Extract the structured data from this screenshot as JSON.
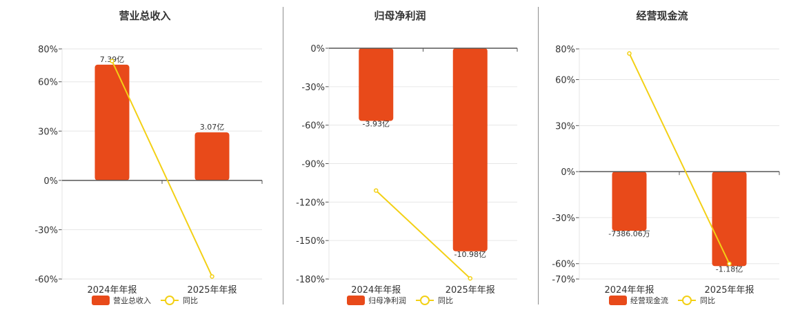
{
  "colors": {
    "bar": "#e84a1a",
    "line": "#f3d015",
    "grid": "#e6e6e6",
    "axis": "#555555",
    "text": "#333333"
  },
  "chart_data": [
    {
      "type": "bar",
      "title": "营业总收入",
      "categories": [
        "2024年年报",
        "2025年年报"
      ],
      "series": [
        {
          "name": "营业总收入",
          "type": "bar",
          "values": [
            7.39,
            3.07
          ],
          "labels": [
            "7.39亿",
            "3.07亿"
          ]
        },
        {
          "name": "同比",
          "type": "line",
          "values": [
            72.6,
            -58.46
          ]
        }
      ],
      "yticks": [
        "80%",
        "60%",
        "30%",
        "0%",
        "-30%",
        "-60%"
      ],
      "ylim": [
        -60,
        80
      ],
      "legend": "bottom"
    },
    {
      "type": "bar",
      "title": "归母净利润",
      "categories": [
        "2024年年报",
        "2025年年报"
      ],
      "series": [
        {
          "name": "归母净利润",
          "type": "bar",
          "values": [
            -3.93,
            -10.98
          ],
          "labels": [
            "-3.93亿",
            "-10.98亿"
          ]
        },
        {
          "name": "同比",
          "type": "line",
          "values": [
            -111,
            -179.5
          ]
        }
      ],
      "yticks": [
        "0%",
        "-30%",
        "-60%",
        "-90%",
        "-120%",
        "-150%",
        "-180%"
      ],
      "ylim": [
        -180,
        0
      ],
      "legend": "bottom"
    },
    {
      "type": "bar",
      "title": "经营现金流",
      "categories": [
        "2024年年报",
        "2025年年报"
      ],
      "series": [
        {
          "name": "经营现金流",
          "type": "bar",
          "values": [
            -0.738606,
            -1.18
          ],
          "labels": [
            "-7386.06万",
            "-1.18亿"
          ]
        },
        {
          "name": "同比",
          "type": "line",
          "values": [
            77,
            -60
          ]
        }
      ],
      "yticks": [
        "80%",
        "60%",
        "30%",
        "0%",
        "-30%",
        "-60%",
        "-70%"
      ],
      "ylim": [
        -70,
        80
      ],
      "legend": "bottom"
    }
  ]
}
